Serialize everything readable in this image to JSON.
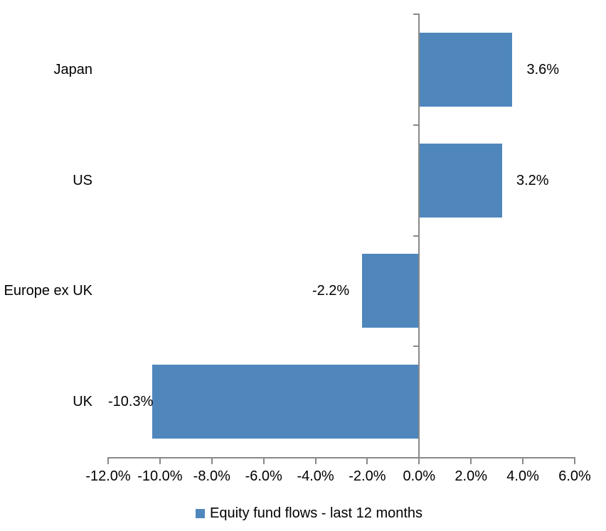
{
  "chart_data": {
    "type": "bar",
    "orientation": "horizontal",
    "title": "",
    "categories": [
      "Japan",
      "US",
      "Europe ex UK",
      "UK"
    ],
    "series": [
      {
        "name": "Equity fund flows - last 12 months",
        "values": [
          3.6,
          3.2,
          -2.2,
          -10.3
        ],
        "value_labels": [
          "3.6%",
          "3.2%",
          "-2.2%",
          "-10.3%"
        ]
      }
    ],
    "xlabel": "",
    "ylabel": "",
    "x_axis": {
      "min": -12,
      "max": 6,
      "step": 2,
      "tick_labels": [
        "-12.0%",
        "-10.0%",
        "-8.0%",
        "-6.0%",
        "-4.0%",
        "-2.0%",
        "0.0%",
        "2.0%",
        "4.0%",
        "6.0%"
      ]
    },
    "grid": false,
    "legend": {
      "position": "bottom",
      "entries": [
        {
          "label": "Equity fund flows - last 12 months",
          "color": "#4f87bd"
        }
      ]
    }
  },
  "colors": {
    "bar": "#4f87bd",
    "axis": "#898989",
    "text": "#000000",
    "background": "#ffffff"
  }
}
